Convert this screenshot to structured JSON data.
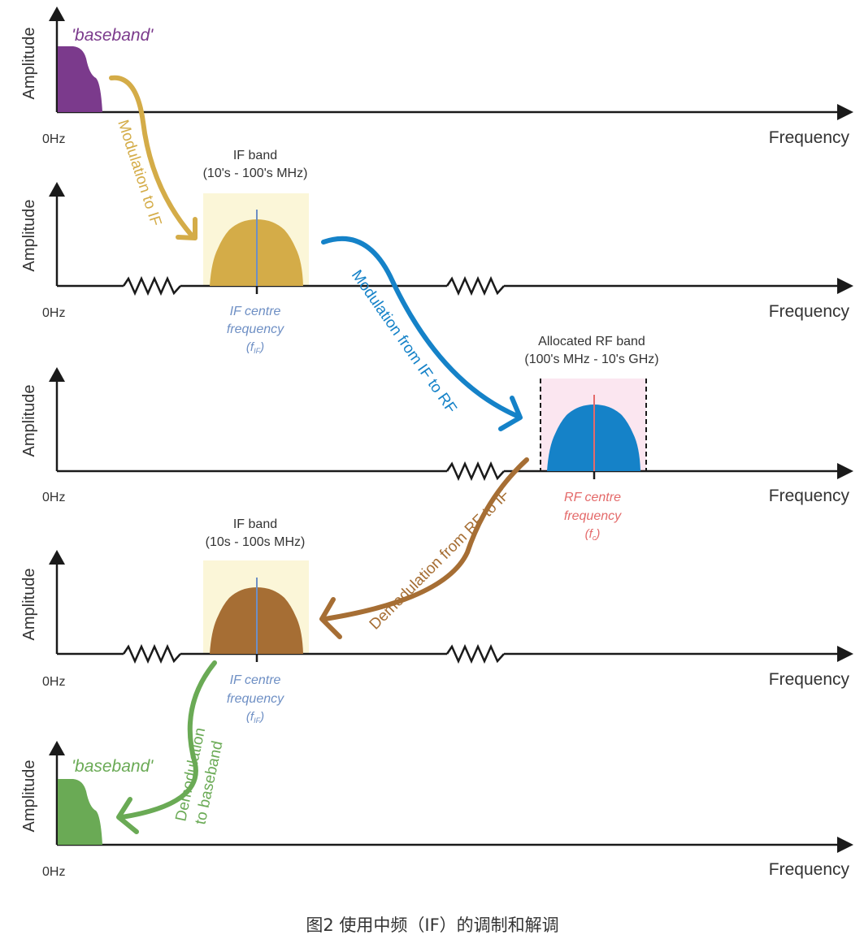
{
  "axis": {
    "ylabel": "Amplitude",
    "xlabel": "Frequency",
    "origin": "0Hz"
  },
  "panel1": {
    "band_label": "'baseband'"
  },
  "panel2": {
    "band_title": "IF band",
    "band_range": "(10's - 100's MHz)",
    "centre_l1": "IF centre",
    "centre_l2": "frequency",
    "centre_sym": "f",
    "centre_sub": "IF"
  },
  "panel3": {
    "band_title": "Allocated RF band",
    "band_range": "(100's MHz - 10's GHz)",
    "centre_l1": "RF centre",
    "centre_l2": "frequency",
    "centre_sym": "f",
    "centre_sub": "c"
  },
  "panel4": {
    "band_title": "IF band",
    "band_range": "(10s - 100s MHz)",
    "centre_l1": "IF centre",
    "centre_l2": "frequency",
    "centre_sym": "f",
    "centre_sub": "IF"
  },
  "panel5": {
    "band_label": "'baseband'"
  },
  "arrows": {
    "mod_to_if": "Modulation to IF",
    "mod_if_to_rf": "Modulation from IF to RF",
    "demod_rf_to_if": "Demodulation from RF to IF",
    "demod_l1": "Demodulation",
    "demod_l2": "to baseband"
  },
  "colors": {
    "baseband": "#7b3a8c",
    "if_band": "#d4ac48",
    "rf_band": "#1582c8",
    "if_band_demod": "#a66e34",
    "baseband_out": "#6aaa55",
    "if_centre_text": "#6e8fc4",
    "rf_centre_text": "#e46a6a"
  },
  "caption": "图2 使用中频（IF）的调制和解调"
}
